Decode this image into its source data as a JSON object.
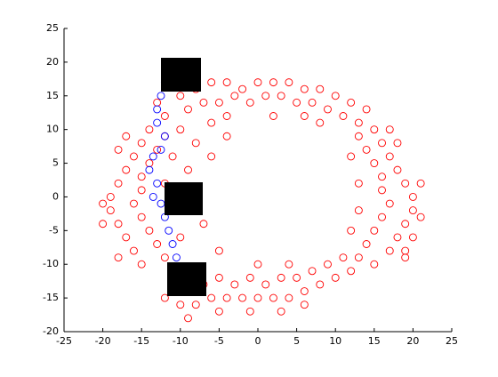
{
  "chart_data": {
    "type": "scatter",
    "xlim": [
      -25,
      25
    ],
    "ylim": [
      -20,
      25
    ],
    "xticks": [
      -25,
      -20,
      -15,
      -10,
      -5,
      0,
      5,
      10,
      15,
      20,
      25
    ],
    "yticks": [
      -20,
      -15,
      -10,
      -5,
      0,
      5,
      10,
      15,
      20,
      25
    ],
    "series": [
      {
        "color": "#ff0000",
        "x": [
          -13,
          -10,
          -8,
          -6,
          -4,
          -2,
          0,
          2,
          4,
          6,
          8,
          10,
          12,
          14,
          -12,
          -9,
          -7,
          -5,
          -3,
          -1,
          1,
          3,
          5,
          7,
          9,
          11,
          13,
          -4,
          2,
          6,
          8,
          -6,
          15,
          16,
          17,
          18,
          19,
          20,
          20,
          19,
          18,
          17,
          15,
          13,
          14,
          15,
          16,
          16,
          17,
          16,
          15,
          14,
          13,
          21,
          21,
          20,
          19,
          12,
          12,
          13,
          13,
          18,
          17,
          19,
          12,
          10,
          8,
          6,
          4,
          2,
          0,
          -2,
          -4,
          -6,
          -8,
          -10,
          -12,
          11,
          9,
          7,
          5,
          3,
          1,
          -1,
          -3,
          -5,
          -7,
          -9,
          -11,
          6,
          3,
          -1,
          -5,
          -9,
          4,
          0,
          -14,
          -15,
          -16,
          -17,
          -18,
          -19,
          -19,
          -18,
          -17,
          -16,
          -15,
          -12,
          -13,
          -14,
          -15,
          -15,
          -16,
          -15,
          -14,
          -13,
          -12,
          -20,
          -20,
          -18,
          -10,
          -11,
          -12,
          -11,
          -10,
          -9,
          -8,
          -7,
          -6,
          -5,
          -4,
          -17,
          -18
        ],
        "values": [
          14,
          15,
          16,
          17,
          17,
          16,
          17,
          17,
          17,
          16,
          16,
          15,
          14,
          13,
          12,
          13,
          14,
          14,
          15,
          14,
          15,
          15,
          14,
          14,
          13,
          12,
          11,
          12,
          12,
          12,
          11,
          11,
          10,
          8,
          6,
          4,
          2,
          0,
          -2,
          -4,
          -6,
          -8,
          -10,
          9,
          7,
          5,
          3,
          1,
          -1,
          -3,
          -5,
          -7,
          -9,
          2,
          -3,
          -6,
          -8,
          6,
          -5,
          2,
          -2,
          8,
          10,
          -9,
          -11,
          -12,
          -13,
          -14,
          -15,
          -15,
          -15,
          -15,
          -15,
          -15,
          -16,
          -16,
          -15,
          -9,
          -10,
          -11,
          -12,
          -12,
          -13,
          -12,
          -13,
          -12,
          -13,
          -13,
          -12,
          -16,
          -17,
          -17,
          -17,
          -18,
          -10,
          -10,
          10,
          8,
          6,
          4,
          2,
          0,
          -2,
          -4,
          -6,
          -8,
          -10,
          9,
          7,
          5,
          3,
          1,
          -1,
          -3,
          -5,
          -7,
          -9,
          -1,
          -4,
          -9,
          10,
          6,
          2,
          -2,
          -6,
          4,
          8,
          -4,
          6,
          -8,
          9,
          9,
          7
        ]
      },
      {
        "color": "#0000ff",
        "x": [
          -12,
          -12.5,
          -13,
          -13,
          -12,
          -12.5,
          -13.5,
          -14,
          -13,
          -13.5,
          -12.5,
          -12,
          -11.5,
          -11,
          -10.5,
          -10.5,
          -10
        ],
        "values": [
          17,
          15,
          13,
          11,
          9,
          7,
          6,
          4,
          2,
          0,
          -1,
          -3,
          -5,
          -7,
          -9,
          -11,
          -13
        ]
      }
    ]
  }
}
